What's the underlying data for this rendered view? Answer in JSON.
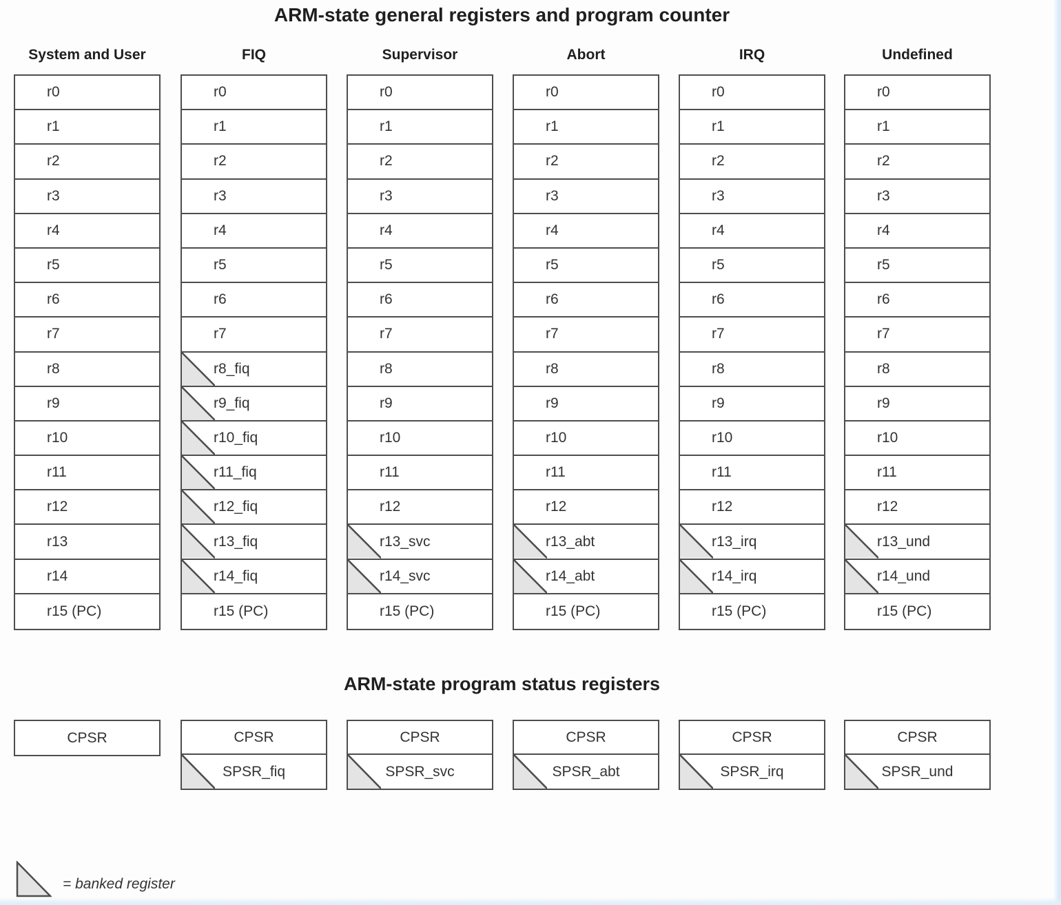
{
  "page": {
    "main_title": "ARM-state general registers and program counter",
    "status_title": "ARM-state program status registers"
  },
  "legend": {
    "icon": "banked-triangle-icon",
    "label": "= banked register"
  },
  "colors": {
    "border": "#4d4d4d",
    "text": "#333333",
    "title": "#1f1f1f",
    "banked_fill": "#e4e4e4",
    "edge_tint": "#d7eaf8"
  },
  "columns": [
    {
      "header": "System and User",
      "registers": [
        {
          "label": "r0",
          "banked": false
        },
        {
          "label": "r1",
          "banked": false
        },
        {
          "label": "r2",
          "banked": false
        },
        {
          "label": "r3",
          "banked": false
        },
        {
          "label": "r4",
          "banked": false
        },
        {
          "label": "r5",
          "banked": false
        },
        {
          "label": "r6",
          "banked": false
        },
        {
          "label": "r7",
          "banked": false
        },
        {
          "label": "r8",
          "banked": false
        },
        {
          "label": "r9",
          "banked": false
        },
        {
          "label": "r10",
          "banked": false
        },
        {
          "label": "r11",
          "banked": false
        },
        {
          "label": "r12",
          "banked": false
        },
        {
          "label": "r13",
          "banked": false
        },
        {
          "label": "r14",
          "banked": false
        },
        {
          "label": "r15 (PC)",
          "banked": false
        }
      ],
      "status": [
        {
          "label": "CPSR",
          "banked": false
        }
      ]
    },
    {
      "header": "FIQ",
      "registers": [
        {
          "label": "r0",
          "banked": false
        },
        {
          "label": "r1",
          "banked": false
        },
        {
          "label": "r2",
          "banked": false
        },
        {
          "label": "r3",
          "banked": false
        },
        {
          "label": "r4",
          "banked": false
        },
        {
          "label": "r5",
          "banked": false
        },
        {
          "label": "r6",
          "banked": false
        },
        {
          "label": "r7",
          "banked": false
        },
        {
          "label": "r8_fiq",
          "banked": true
        },
        {
          "label": "r9_fiq",
          "banked": true
        },
        {
          "label": "r10_fiq",
          "banked": true
        },
        {
          "label": "r11_fiq",
          "banked": true
        },
        {
          "label": "r12_fiq",
          "banked": true
        },
        {
          "label": "r13_fiq",
          "banked": true
        },
        {
          "label": "r14_fiq",
          "banked": true
        },
        {
          "label": "r15 (PC)",
          "banked": false
        }
      ],
      "status": [
        {
          "label": "CPSR",
          "banked": false
        },
        {
          "label": "SPSR_fiq",
          "banked": true
        }
      ]
    },
    {
      "header": "Supervisor",
      "registers": [
        {
          "label": "r0",
          "banked": false
        },
        {
          "label": "r1",
          "banked": false
        },
        {
          "label": "r2",
          "banked": false
        },
        {
          "label": "r3",
          "banked": false
        },
        {
          "label": "r4",
          "banked": false
        },
        {
          "label": "r5",
          "banked": false
        },
        {
          "label": "r6",
          "banked": false
        },
        {
          "label": "r7",
          "banked": false
        },
        {
          "label": "r8",
          "banked": false
        },
        {
          "label": "r9",
          "banked": false
        },
        {
          "label": "r10",
          "banked": false
        },
        {
          "label": "r11",
          "banked": false
        },
        {
          "label": "r12",
          "banked": false
        },
        {
          "label": "r13_svc",
          "banked": true
        },
        {
          "label": "r14_svc",
          "banked": true
        },
        {
          "label": "r15 (PC)",
          "banked": false
        }
      ],
      "status": [
        {
          "label": "CPSR",
          "banked": false
        },
        {
          "label": "SPSR_svc",
          "banked": true
        }
      ]
    },
    {
      "header": "Abort",
      "registers": [
        {
          "label": "r0",
          "banked": false
        },
        {
          "label": "r1",
          "banked": false
        },
        {
          "label": "r2",
          "banked": false
        },
        {
          "label": "r3",
          "banked": false
        },
        {
          "label": "r4",
          "banked": false
        },
        {
          "label": "r5",
          "banked": false
        },
        {
          "label": "r6",
          "banked": false
        },
        {
          "label": "r7",
          "banked": false
        },
        {
          "label": "r8",
          "banked": false
        },
        {
          "label": "r9",
          "banked": false
        },
        {
          "label": "r10",
          "banked": false
        },
        {
          "label": "r11",
          "banked": false
        },
        {
          "label": "r12",
          "banked": false
        },
        {
          "label": "r13_abt",
          "banked": true
        },
        {
          "label": "r14_abt",
          "banked": true
        },
        {
          "label": "r15 (PC)",
          "banked": false
        }
      ],
      "status": [
        {
          "label": "CPSR",
          "banked": false
        },
        {
          "label": "SPSR_abt",
          "banked": true
        }
      ]
    },
    {
      "header": "IRQ",
      "registers": [
        {
          "label": "r0",
          "banked": false
        },
        {
          "label": "r1",
          "banked": false
        },
        {
          "label": "r2",
          "banked": false
        },
        {
          "label": "r3",
          "banked": false
        },
        {
          "label": "r4",
          "banked": false
        },
        {
          "label": "r5",
          "banked": false
        },
        {
          "label": "r6",
          "banked": false
        },
        {
          "label": "r7",
          "banked": false
        },
        {
          "label": "r8",
          "banked": false
        },
        {
          "label": "r9",
          "banked": false
        },
        {
          "label": "r10",
          "banked": false
        },
        {
          "label": "r11",
          "banked": false
        },
        {
          "label": "r12",
          "banked": false
        },
        {
          "label": "r13_irq",
          "banked": true
        },
        {
          "label": "r14_irq",
          "banked": true
        },
        {
          "label": "r15 (PC)",
          "banked": false
        }
      ],
      "status": [
        {
          "label": "CPSR",
          "banked": false
        },
        {
          "label": "SPSR_irq",
          "banked": true
        }
      ]
    },
    {
      "header": "Undefined",
      "registers": [
        {
          "label": "r0",
          "banked": false
        },
        {
          "label": "r1",
          "banked": false
        },
        {
          "label": "r2",
          "banked": false
        },
        {
          "label": "r3",
          "banked": false
        },
        {
          "label": "r4",
          "banked": false
        },
        {
          "label": "r5",
          "banked": false
        },
        {
          "label": "r6",
          "banked": false
        },
        {
          "label": "r7",
          "banked": false
        },
        {
          "label": "r8",
          "banked": false
        },
        {
          "label": "r9",
          "banked": false
        },
        {
          "label": "r10",
          "banked": false
        },
        {
          "label": "r11",
          "banked": false
        },
        {
          "label": "r12",
          "banked": false
        },
        {
          "label": "r13_und",
          "banked": true
        },
        {
          "label": "r14_und",
          "banked": true
        },
        {
          "label": "r15 (PC)",
          "banked": false
        }
      ],
      "status": [
        {
          "label": "CPSR",
          "banked": false
        },
        {
          "label": "SPSR_und",
          "banked": true
        }
      ]
    }
  ]
}
